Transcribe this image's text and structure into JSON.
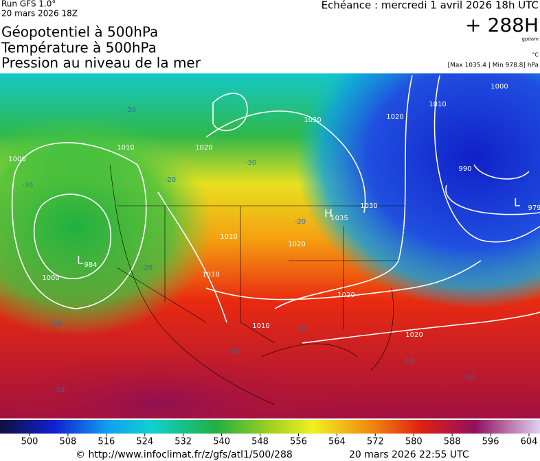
{
  "header": {
    "run": "Run GFS 1.0°",
    "date": "20 mars 2026 18Z",
    "titles": [
      "Géopotentiel à 500hPa",
      "Température à 500hPa",
      "Pression au niveau de la mer"
    ],
    "echeance": "Echéance : mercredi 1 avril 2026 18h UTC",
    "forecast": "+ 288H",
    "unit_geo": "gpdam",
    "unit_temp": "°C",
    "pressure_range": "[Max 1035.4 | Min 978.8] hPa"
  },
  "map": {
    "high_marker": "H",
    "low_markers": [
      "L",
      "L"
    ],
    "isobar_labels": [
      1030,
      1020,
      1010,
      1020,
      1000,
      1010,
      1000,
      990,
      979,
      1030,
      1035,
      984,
      1000,
      1020,
      1010,
      1020,
      1010,
      1020,
      1010
    ],
    "isotherm_labels": [
      -30,
      -30,
      -20,
      -30,
      -20,
      -20,
      -20,
      -20,
      -20,
      -10,
      -10,
      -10,
      -10,
      -10
    ]
  },
  "colorbar": {
    "ticks": [
      500,
      508,
      516,
      524,
      532,
      540,
      548,
      556,
      564,
      572,
      580,
      588,
      596,
      604
    ]
  },
  "footer": {
    "url": "© http://www.infoclimat.fr/z/gfs/atl1/500/288",
    "timestamp": "20 mars 2026 22:55 UTC"
  }
}
